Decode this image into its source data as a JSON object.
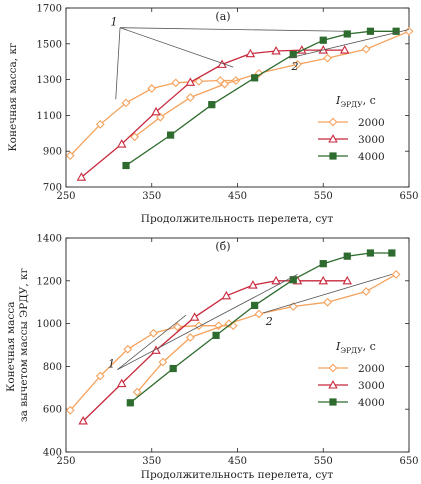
{
  "chart_data": [
    {
      "type": "line",
      "panel": "(a)",
      "xlabel": "Продолжительность перелета, сут",
      "ylabel": "Конечная масса, кг",
      "xlim": [
        250,
        650
      ],
      "ylim": [
        700,
        1700
      ],
      "xticks": [
        250,
        350,
        450,
        550,
        650
      ],
      "yticks": [
        700,
        900,
        1100,
        1300,
        1500,
        1700
      ],
      "annotations": [
        {
          "label": "1",
          "points": [
            [
              313,
              1590
            ],
            [
              308,
              1190
            ],
            [
              445,
              1370
            ],
            [
              575,
              1570
            ]
          ]
        },
        {
          "label": "2",
          "points": [
            [
              510,
              1420
            ],
            [
              650,
              1580
            ]
          ]
        }
      ],
      "legend": {
        "title": "I",
        "title_sub": "ЭРДУ",
        "title_unit": ", с",
        "placement": "right"
      },
      "series": [
        {
          "name": "2000",
          "color": "#f5a25d",
          "marker": "diamond",
          "x": [
            255,
            290,
            320,
            350,
            378,
            405,
            430,
            448
          ],
          "y": [
            875,
            1050,
            1170,
            1250,
            1282,
            1290,
            1295,
            1295
          ]
        },
        {
          "name": "2000",
          "color": "#f5a25d",
          "marker": "diamond",
          "role": "curve-2",
          "x": [
            330,
            360,
            395,
            435,
            475,
            520,
            555,
            600,
            650
          ],
          "y": [
            980,
            1090,
            1200,
            1275,
            1335,
            1385,
            1420,
            1470,
            1570
          ]
        },
        {
          "name": "3000",
          "color": "#c8283c",
          "marker": "triangle",
          "x": [
            268,
            315,
            355,
            395,
            432,
            465,
            495,
            525,
            550,
            575
          ],
          "y": [
            755,
            940,
            1120,
            1285,
            1385,
            1445,
            1460,
            1465,
            1465,
            1465
          ]
        },
        {
          "name": "4000",
          "color": "#2e6b2e",
          "marker": "square",
          "x": [
            320,
            372,
            420,
            470,
            515,
            550,
            578,
            605,
            635
          ],
          "y": [
            820,
            990,
            1160,
            1310,
            1440,
            1520,
            1555,
            1570,
            1570
          ]
        }
      ]
    },
    {
      "type": "line",
      "panel": "(б)",
      "xlabel": "Продолжительность перелета, сут",
      "ylabel": "Конечная масса за вычетом массы ЭРДУ, кг",
      "xlim": [
        250,
        650
      ],
      "ylim": [
        400,
        1400
      ],
      "xticks": [
        250,
        350,
        450,
        550,
        650
      ],
      "yticks": [
        400,
        600,
        800,
        1000,
        1200,
        1400
      ],
      "annotations": [
        {
          "label": "1",
          "points": [
            [
              310,
              785
            ],
            [
              390,
              1040
            ],
            [
              520,
              1230
            ]
          ]
        },
        {
          "label": "2",
          "points": [
            [
              480,
              1050
            ],
            [
              630,
              1230
            ]
          ]
        }
      ],
      "legend": {
        "title": "I",
        "title_sub": "ЭРДУ",
        "title_unit": ", с",
        "placement": "right"
      },
      "series": [
        {
          "name": "2000",
          "color": "#f5a25d",
          "marker": "diamond",
          "x": [
            255,
            290,
            322,
            352,
            380,
            405,
            428,
            445
          ],
          "y": [
            595,
            755,
            880,
            955,
            985,
            990,
            990,
            990
          ]
        },
        {
          "name": "2000",
          "color": "#f5a25d",
          "marker": "diamond",
          "role": "curve-2",
          "x": [
            333,
            363,
            395,
            440,
            475,
            515,
            555,
            600,
            635
          ],
          "y": [
            680,
            820,
            935,
            1000,
            1045,
            1080,
            1100,
            1150,
            1230
          ]
        },
        {
          "name": "3000",
          "color": "#c8283c",
          "marker": "triangle",
          "x": [
            270,
            315,
            355,
            400,
            437,
            468,
            495,
            520,
            550,
            578
          ],
          "y": [
            545,
            720,
            875,
            1030,
            1130,
            1180,
            1200,
            1200,
            1200,
            1200
          ]
        },
        {
          "name": "4000",
          "color": "#2e6b2e",
          "marker": "square",
          "x": [
            325,
            375,
            425,
            470,
            515,
            550,
            578,
            605,
            630
          ],
          "y": [
            630,
            790,
            945,
            1085,
            1205,
            1280,
            1315,
            1330,
            1330
          ]
        }
      ]
    }
  ]
}
